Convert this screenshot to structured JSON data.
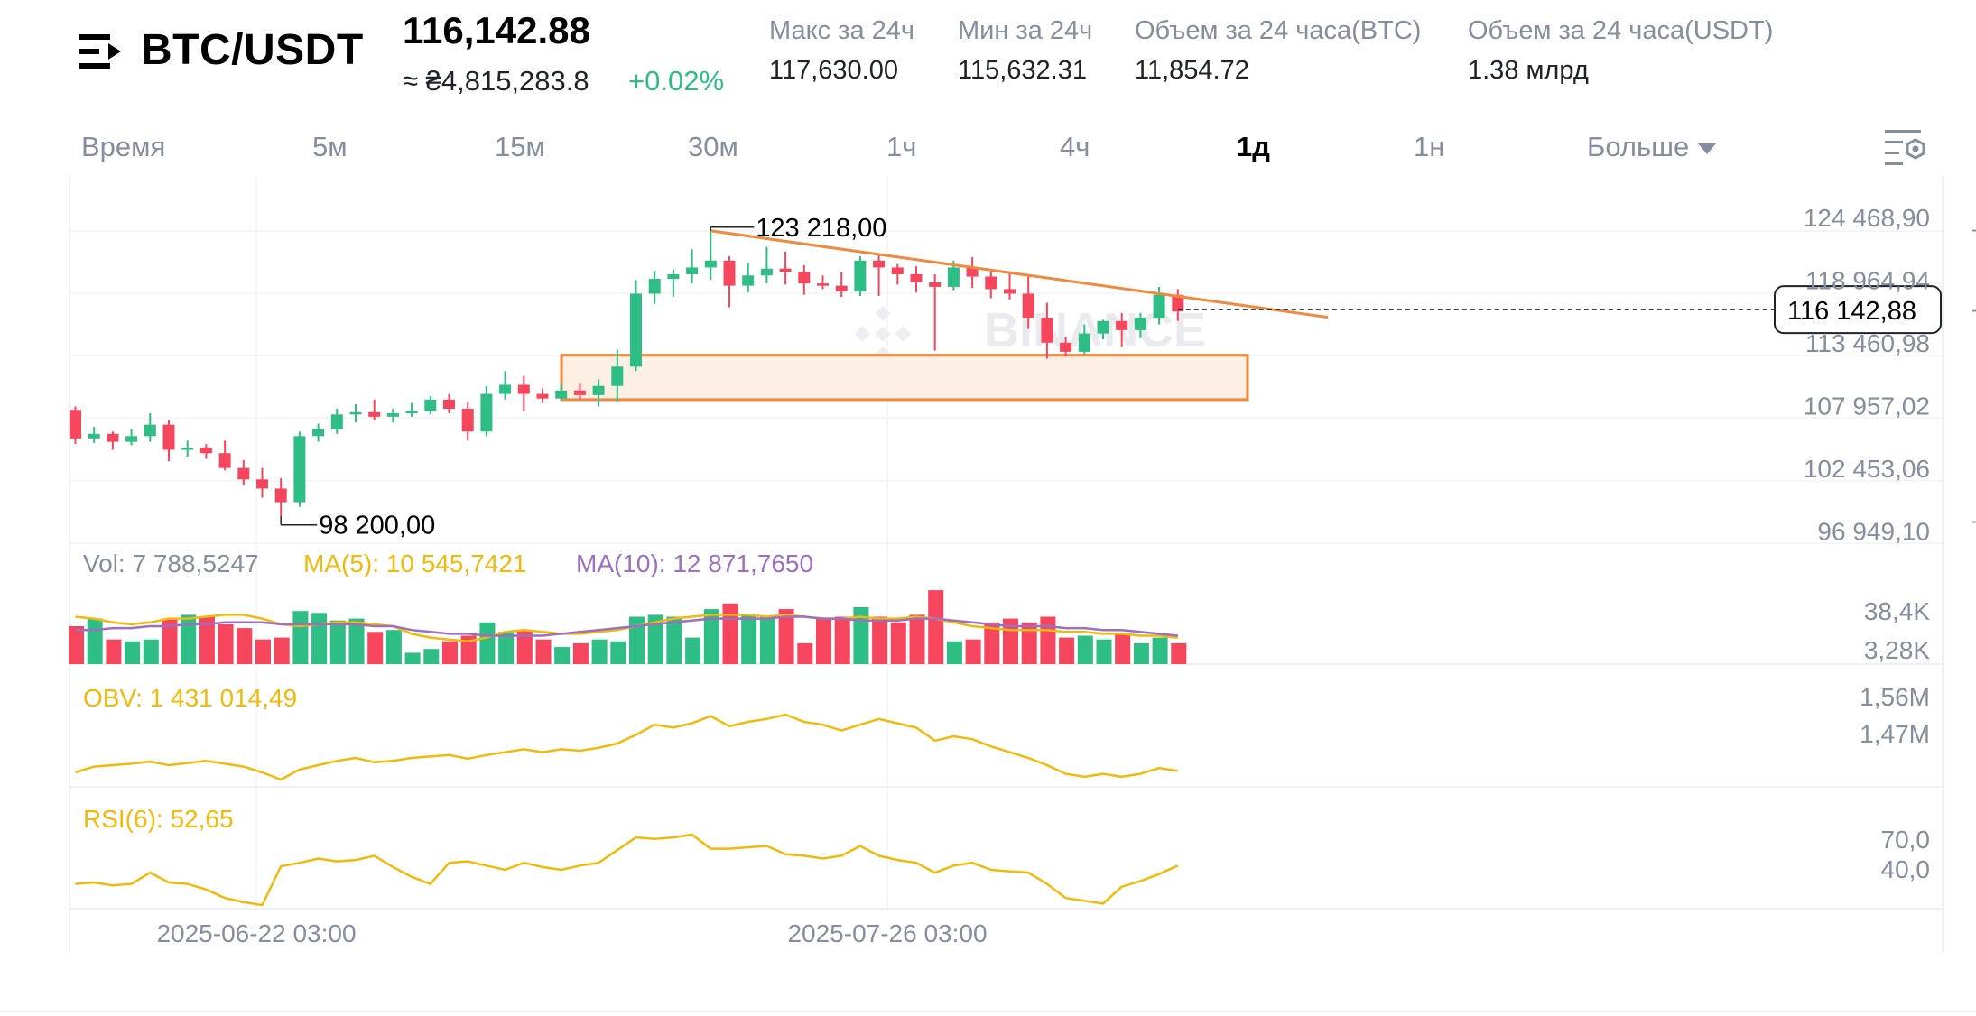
{
  "header": {
    "menu_icon": "menu-icon",
    "pair": "BTC/USDT",
    "price": "116,142.88",
    "approx": "≈ ₴4,815,283.8",
    "change": "+0.02%",
    "stats": [
      {
        "label": "Макс за 24ч",
        "value": "117,630.00"
      },
      {
        "label": "Мин за 24ч",
        "value": "115,632.31"
      },
      {
        "label": "Объем за 24 часа(BTC)",
        "value": "11,854.72"
      },
      {
        "label": "Объем за 24 часа(USDT)",
        "value": "1.38 млрд"
      }
    ]
  },
  "timeframes": {
    "items": [
      "Время",
      "5м",
      "15м",
      "30м",
      "1ч",
      "4ч",
      "1д",
      "1н",
      "Больше"
    ],
    "active": "1д",
    "settings_icon": "chart-settings-icon"
  },
  "colors": {
    "up": "#2ebd85",
    "down": "#f6465d",
    "accent": "#f0b90b",
    "ma10": "#9c6fc0",
    "trend": "#f0883e"
  },
  "chart_data": {
    "type": "candlestick",
    "watermark": "BINANCE",
    "price_axis": [
      "124 468,90",
      "118 964,94",
      "113 460,98",
      "107 957,02",
      "102 453,06",
      "96 949,10"
    ],
    "current_price_label": "116 142,88",
    "high_label": "123 218,00",
    "low_label": "98 200,00",
    "time_labels": [
      "2025-06-22 03:00",
      "2025-07-26 03:00"
    ],
    "candles": [
      [
        107500,
        107800,
        104500,
        105000
      ],
      [
        105000,
        106000,
        104600,
        105400
      ],
      [
        105400,
        105600,
        104000,
        104700
      ],
      [
        104700,
        105800,
        104400,
        105200
      ],
      [
        105200,
        107200,
        104700,
        106200
      ],
      [
        106200,
        106600,
        103000,
        104000
      ],
      [
        104000,
        104800,
        103400,
        104200
      ],
      [
        104200,
        104500,
        103200,
        103700
      ],
      [
        103700,
        104800,
        102200,
        102400
      ],
      [
        102400,
        103100,
        100900,
        101400
      ],
      [
        101400,
        102400,
        99800,
        100600
      ],
      [
        100600,
        101500,
        98200,
        99400
      ],
      [
        99400,
        105600,
        99000,
        105200
      ],
      [
        105200,
        106300,
        104700,
        105800
      ],
      [
        105800,
        107600,
        105400,
        107100
      ],
      [
        107100,
        108000,
        106400,
        107300
      ],
      [
        107300,
        108400,
        106600,
        106900
      ],
      [
        106900,
        107600,
        106400,
        107200
      ],
      [
        107200,
        108100,
        106900,
        107400
      ],
      [
        107400,
        108700,
        107100,
        108400
      ],
      [
        108400,
        108900,
        107200,
        107600
      ],
      [
        107600,
        108200,
        104800,
        105600
      ],
      [
        105600,
        109600,
        105200,
        108900
      ],
      [
        108900,
        110900,
        108400,
        109700
      ],
      [
        109700,
        110500,
        107400,
        108900
      ],
      [
        108900,
        109400,
        108100,
        108500
      ],
      [
        108500,
        109800,
        108400,
        109200
      ],
      [
        109200,
        109800,
        108400,
        108800
      ],
      [
        108800,
        110200,
        107800,
        109600
      ],
      [
        109600,
        112800,
        108200,
        111300
      ],
      [
        111300,
        118900,
        110900,
        117700
      ],
      [
        117700,
        119700,
        116800,
        119000
      ],
      [
        119000,
        119800,
        117400,
        119400
      ],
      [
        119400,
        121600,
        118600,
        120000
      ],
      [
        120000,
        123218,
        118900,
        120600
      ],
      [
        120600,
        121000,
        116500,
        118400
      ],
      [
        118400,
        120400,
        117800,
        119300
      ],
      [
        119300,
        121800,
        118600,
        119900
      ],
      [
        119900,
        121400,
        118500,
        119600
      ],
      [
        119600,
        120200,
        117600,
        118600
      ],
      [
        118600,
        119300,
        118100,
        118400
      ],
      [
        118400,
        119600,
        117400,
        117900
      ],
      [
        117900,
        121000,
        117500,
        120600
      ],
      [
        120600,
        121200,
        117500,
        120000
      ],
      [
        120000,
        120300,
        118500,
        119400
      ],
      [
        119400,
        120100,
        117800,
        118700
      ],
      [
        118700,
        119400,
        112700,
        118300
      ],
      [
        118300,
        120600,
        118000,
        120000
      ],
      [
        120000,
        120900,
        118200,
        119200
      ],
      [
        119200,
        119800,
        117300,
        118100
      ],
      [
        118100,
        119500,
        117200,
        117700
      ],
      [
        117700,
        119400,
        114600,
        115600
      ],
      [
        115600,
        116900,
        112000,
        113400
      ],
      [
        113400,
        113900,
        112200,
        112600
      ],
      [
        112600,
        115000,
        112400,
        114200
      ],
      [
        114200,
        115400,
        113700,
        115300
      ],
      [
        115300,
        116000,
        113000,
        114500
      ],
      [
        114500,
        116000,
        113800,
        115600
      ],
      [
        115600,
        118300,
        115000,
        117600
      ],
      [
        117600,
        118100,
        115300,
        116143
      ]
    ],
    "trendline_from": [
      34,
      123218
    ],
    "trendline_to": [
      63,
      116100
    ],
    "zone": {
      "from_index": 26,
      "to_index": 63,
      "top": 112300,
      "bottom": 108400
    },
    "volume": {
      "label": "Vol: 7 788,5247",
      "ma5_label": "MA(5): 10 545,7421",
      "ma10_label": "MA(10): 12 871,7650",
      "axis": [
        "38,4K",
        "3,28K"
      ],
      "values": [
        20,
        24,
        13,
        12,
        13,
        24,
        26,
        25,
        21,
        19,
        13,
        14,
        28,
        27,
        23,
        24,
        17,
        18,
        6,
        8,
        12,
        15,
        22,
        17,
        18,
        13,
        9,
        11,
        13,
        12,
        25,
        26,
        25,
        14,
        29,
        32,
        26,
        25,
        29,
        11,
        24,
        25,
        30,
        25,
        22,
        26,
        39,
        12,
        13,
        22,
        24,
        22,
        25,
        14,
        15,
        13,
        16,
        11,
        14,
        11
      ],
      "ma5": [
        25,
        24,
        22,
        21,
        22,
        24,
        24,
        25,
        26,
        26,
        24,
        21,
        20,
        21,
        22,
        22,
        21,
        20,
        16,
        14,
        13,
        12,
        14,
        17,
        18,
        17,
        16,
        16,
        17,
        18,
        20,
        22,
        24,
        25,
        26,
        26,
        26,
        25,
        26,
        25,
        24,
        24,
        25,
        24,
        24,
        25,
        24,
        22,
        20,
        19,
        18,
        18,
        18,
        17,
        17,
        16,
        16,
        15,
        15,
        14
      ],
      "ma10": [
        18,
        18,
        19,
        19,
        20,
        20,
        21,
        21,
        22,
        22,
        22,
        21,
        21,
        21,
        21,
        21,
        20,
        20,
        18,
        17,
        16,
        16,
        15,
        15,
        15,
        15,
        16,
        17,
        18,
        19,
        20,
        21,
        22,
        23,
        24,
        24,
        24,
        24,
        25,
        25,
        24,
        24,
        23,
        23,
        23,
        24,
        24,
        23,
        22,
        21,
        20,
        20,
        20,
        19,
        19,
        18,
        18,
        17,
        16,
        15
      ]
    },
    "obv": {
      "label": "OBV: 1 431 014,49",
      "axis": [
        "1,56M",
        "1,47M"
      ],
      "values": [
        0.2,
        0.28,
        0.3,
        0.32,
        0.35,
        0.3,
        0.33,
        0.36,
        0.32,
        0.28,
        0.2,
        0.1,
        0.24,
        0.3,
        0.36,
        0.4,
        0.34,
        0.36,
        0.4,
        0.42,
        0.44,
        0.39,
        0.44,
        0.48,
        0.52,
        0.48,
        0.52,
        0.5,
        0.54,
        0.6,
        0.72,
        0.86,
        0.82,
        0.88,
        0.98,
        0.84,
        0.9,
        0.94,
        1.0,
        0.9,
        0.86,
        0.78,
        0.86,
        0.94,
        0.88,
        0.82,
        0.64,
        0.7,
        0.66,
        0.56,
        0.48,
        0.4,
        0.3,
        0.18,
        0.14,
        0.18,
        0.14,
        0.18,
        0.26,
        0.22
      ]
    },
    "rsi": {
      "label": "RSI(6): 52,65",
      "axis": [
        "70,0",
        "40,0"
      ],
      "values": [
        0.3,
        0.32,
        0.28,
        0.3,
        0.46,
        0.32,
        0.3,
        0.22,
        0.1,
        0.04,
        0.0,
        0.55,
        0.6,
        0.66,
        0.62,
        0.64,
        0.7,
        0.54,
        0.4,
        0.3,
        0.6,
        0.62,
        0.56,
        0.5,
        0.6,
        0.54,
        0.5,
        0.56,
        0.6,
        0.78,
        0.96,
        0.94,
        0.96,
        1.0,
        0.8,
        0.8,
        0.82,
        0.84,
        0.72,
        0.7,
        0.66,
        0.7,
        0.84,
        0.7,
        0.64,
        0.6,
        0.46,
        0.56,
        0.6,
        0.5,
        0.48,
        0.46,
        0.3,
        0.1,
        0.06,
        0.02,
        0.26,
        0.34,
        0.44,
        0.56
      ]
    }
  }
}
